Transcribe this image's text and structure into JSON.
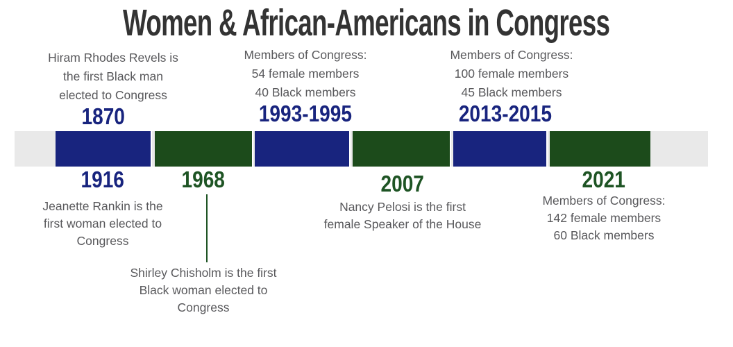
{
  "title": "Women & African-Americans in Congress",
  "colors": {
    "blue": "#18247E",
    "bar_green": "#1C4B1B",
    "date_green": "#1E5424",
    "track_gray": "#E9E9E9",
    "body_text": "#58585B",
    "title_text": "#333333"
  },
  "timeline_bar": {
    "segments": [
      {
        "index": 1,
        "color": "blue"
      },
      {
        "index": 2,
        "color": "green"
      },
      {
        "index": 3,
        "color": "blue"
      },
      {
        "index": 4,
        "color": "green"
      },
      {
        "index": 5,
        "color": "blue"
      },
      {
        "index": 6,
        "color": "green"
      }
    ]
  },
  "events_top": [
    {
      "date": "1870",
      "lines": [
        "Hiram Rhodes Revels is",
        "the first Black man",
        "elected to Congress"
      ]
    },
    {
      "date": "1993-1995",
      "lines": [
        "Members of Congress:",
        "54 female members",
        "40 Black members"
      ]
    },
    {
      "date": "2013-2015",
      "lines": [
        "Members of Congress:",
        "100 female members",
        "45 Black members"
      ]
    }
  ],
  "events_bottom": [
    {
      "date": "1916",
      "lines": [
        "Jeanette Rankin is the",
        "first woman elected to",
        "Congress"
      ]
    },
    {
      "date": "1968",
      "lines": [
        "Shirley Chisholm is the first",
        "Black woman elected to",
        "Congress"
      ]
    },
    {
      "date": "2007",
      "lines": [
        "Nancy Pelosi is the first",
        "female Speaker of the House"
      ]
    },
    {
      "date": "2021",
      "lines": [
        "Members of Congress:",
        "142 female members",
        "60 Black members"
      ]
    }
  ]
}
